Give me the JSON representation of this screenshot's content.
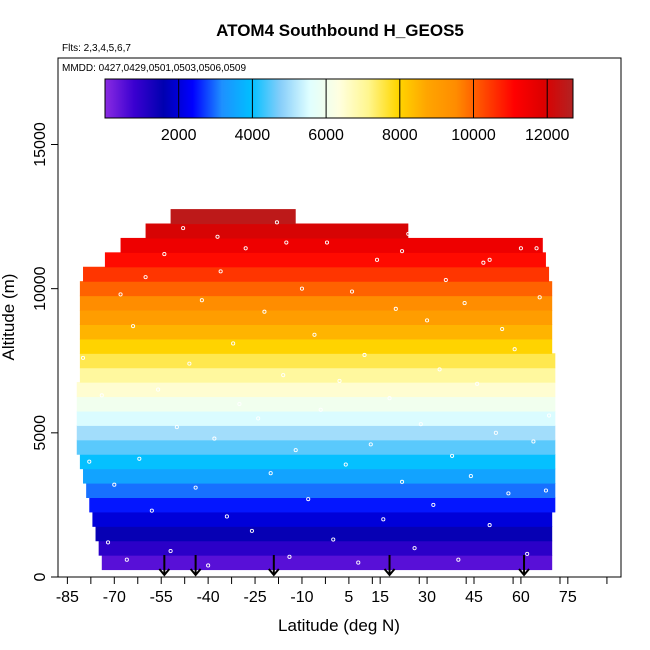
{
  "chart_data": {
    "type": "heatmap",
    "title": "ATOM4 Southbound H_GEOS5",
    "flights_note": "Flts: 2,3,4,5,6,7",
    "dates_note": "MMDD: 0427,0429,0501,0503,0506,0509",
    "xlabel": "Latitude (deg N)",
    "ylabel": "Altitude (m)",
    "xlim": [
      -88,
      92
    ],
    "ylim": [
      0,
      18000
    ],
    "x_tick_values": [
      -85,
      -70,
      -55,
      -40,
      -25,
      -10,
      5,
      15,
      30,
      45,
      60,
      75
    ],
    "x_tick_labels": [
      "-85",
      "-70",
      "-55",
      "-40",
      "-25",
      "-10",
      "5",
      "15",
      "30",
      "45",
      "60",
      "75"
    ],
    "y_tick_values": [
      0,
      5000,
      10000,
      15000
    ],
    "y_tick_labels": [
      "0",
      "5000",
      "10000",
      "15000"
    ],
    "colorbar": {
      "range": [
        0,
        12700
      ],
      "tick_values": [
        2000,
        4000,
        6000,
        8000,
        10000,
        12000
      ],
      "tick_labels": [
        "2000",
        "4000",
        "6000",
        "8000",
        "10000",
        "12000"
      ],
      "palette": [
        "#8a2be2",
        "#3a00d0",
        "#0000b0",
        "#0000ff",
        "#1e90ff",
        "#00bfff",
        "#87cefa",
        "#e0ffff",
        "#ffffe0",
        "#fff68f",
        "#ffd700",
        "#ffa500",
        "#ff8c00",
        "#ff4500",
        "#ff0000",
        "#dc0000",
        "#b22222"
      ]
    },
    "altitude_bands": [
      {
        "alt": 500,
        "x": [
          -74,
          70
        ]
      },
      {
        "alt": 1000,
        "x": [
          -75,
          70
        ]
      },
      {
        "alt": 1500,
        "x": [
          -76,
          70
        ]
      },
      {
        "alt": 2000,
        "x": [
          -77,
          70
        ]
      },
      {
        "alt": 2500,
        "x": [
          -78,
          71
        ]
      },
      {
        "alt": 3000,
        "x": [
          -79,
          71
        ]
      },
      {
        "alt": 3500,
        "x": [
          -80,
          71
        ]
      },
      {
        "alt": 4000,
        "x": [
          -81,
          71
        ]
      },
      {
        "alt": 4500,
        "x": [
          -82,
          71
        ]
      },
      {
        "alt": 5000,
        "x": [
          -82,
          71
        ]
      },
      {
        "alt": 5500,
        "x": [
          -82,
          71
        ]
      },
      {
        "alt": 6000,
        "x": [
          -82,
          71
        ]
      },
      {
        "alt": 6500,
        "x": [
          -82,
          71
        ]
      },
      {
        "alt": 7000,
        "x": [
          -81,
          71
        ]
      },
      {
        "alt": 7500,
        "x": [
          -81,
          71
        ]
      },
      {
        "alt": 8000,
        "x": [
          -81,
          70
        ]
      },
      {
        "alt": 8500,
        "x": [
          -81,
          70
        ]
      },
      {
        "alt": 9000,
        "x": [
          -81,
          70
        ]
      },
      {
        "alt": 9500,
        "x": [
          -81,
          70
        ]
      },
      {
        "alt": 10000,
        "x": [
          -81,
          70
        ]
      },
      {
        "alt": 10500,
        "x": [
          -80,
          69
        ]
      },
      {
        "alt": 11000,
        "x": [
          -73,
          68
        ]
      },
      {
        "alt": 11500,
        "x": [
          -68,
          67
        ]
      },
      {
        "alt": 12000,
        "x": [
          -60,
          24
        ]
      },
      {
        "alt": 12500,
        "x": [
          -52,
          -12
        ]
      }
    ],
    "sample_points": [
      {
        "x": -72,
        "y": 1200
      },
      {
        "x": -70,
        "y": 3200
      },
      {
        "x": -66,
        "y": 600
      },
      {
        "x": -64,
        "y": 8700
      },
      {
        "x": -62,
        "y": 4100
      },
      {
        "x": -60,
        "y": 10400
      },
      {
        "x": -58,
        "y": 2300
      },
      {
        "x": -56,
        "y": 6500
      },
      {
        "x": -54,
        "y": 11200
      },
      {
        "x": -52,
        "y": 900
      },
      {
        "x": -50,
        "y": 5200
      },
      {
        "x": -48,
        "y": 12100
      },
      {
        "x": -46,
        "y": 7400
      },
      {
        "x": -44,
        "y": 3100
      },
      {
        "x": -42,
        "y": 9600
      },
      {
        "x": -40,
        "y": 400
      },
      {
        "x": -38,
        "y": 4800
      },
      {
        "x": -36,
        "y": 10600
      },
      {
        "x": -34,
        "y": 2100
      },
      {
        "x": -32,
        "y": 8100
      },
      {
        "x": -30,
        "y": 6000
      },
      {
        "x": -28,
        "y": 11400
      },
      {
        "x": -26,
        "y": 1600
      },
      {
        "x": -24,
        "y": 5500
      },
      {
        "x": -22,
        "y": 9200
      },
      {
        "x": -20,
        "y": 3600
      },
      {
        "x": -18,
        "y": 12300
      },
      {
        "x": -16,
        "y": 7000
      },
      {
        "x": -14,
        "y": 700
      },
      {
        "x": -12,
        "y": 4400
      },
      {
        "x": -10,
        "y": 10000
      },
      {
        "x": -8,
        "y": 2700
      },
      {
        "x": -6,
        "y": 8400
      },
      {
        "x": -4,
        "y": 5800
      },
      {
        "x": -2,
        "y": 11600
      },
      {
        "x": 0,
        "y": 1300
      },
      {
        "x": 2,
        "y": 6800
      },
      {
        "x": 4,
        "y": 3900
      },
      {
        "x": 6,
        "y": 9900
      },
      {
        "x": 8,
        "y": 500
      },
      {
        "x": 10,
        "y": 7700
      },
      {
        "x": 12,
        "y": 4600
      },
      {
        "x": 14,
        "y": 11000
      },
      {
        "x": 16,
        "y": 2000
      },
      {
        "x": 18,
        "y": 6200
      },
      {
        "x": 20,
        "y": 9300
      },
      {
        "x": 22,
        "y": 3300
      },
      {
        "x": 24,
        "y": 11900
      },
      {
        "x": 26,
        "y": 1000
      },
      {
        "x": 28,
        "y": 5300
      },
      {
        "x": 30,
        "y": 8900
      },
      {
        "x": 32,
        "y": 2500
      },
      {
        "x": 34,
        "y": 7200
      },
      {
        "x": 36,
        "y": 10300
      },
      {
        "x": 38,
        "y": 4200
      },
      {
        "x": 40,
        "y": 600
      },
      {
        "x": 42,
        "y": 9500
      },
      {
        "x": 44,
        "y": 3500
      },
      {
        "x": 46,
        "y": 6700
      },
      {
        "x": 48,
        "y": 10900
      },
      {
        "x": 50,
        "y": 1800
      },
      {
        "x": 52,
        "y": 5000
      },
      {
        "x": 54,
        "y": 8600
      },
      {
        "x": 56,
        "y": 2900
      },
      {
        "x": 58,
        "y": 7900
      },
      {
        "x": 60,
        "y": 11400
      },
      {
        "x": 62,
        "y": 800
      },
      {
        "x": 64,
        "y": 4700
      },
      {
        "x": 66,
        "y": 9700
      },
      {
        "x": 68,
        "y": 3000
      },
      {
        "x": -68,
        "y": 9800
      },
      {
        "x": -74,
        "y": 6300
      },
      {
        "x": -78,
        "y": 4000
      },
      {
        "x": -80,
        "y": 7600
      },
      {
        "x": 69,
        "y": 5600
      },
      {
        "x": -37,
        "y": 11800
      },
      {
        "x": -15,
        "y": 11600
      },
      {
        "x": 22,
        "y": 11300
      },
      {
        "x": 50,
        "y": 11000
      },
      {
        "x": 65,
        "y": 11400
      }
    ],
    "arrow_latitudes": [
      -54,
      -44,
      -19,
      18,
      61
    ],
    "arrow_color": "#000000",
    "point_color": "#ffffff",
    "grid": false,
    "colorbar_position": "top, inside plot"
  }
}
